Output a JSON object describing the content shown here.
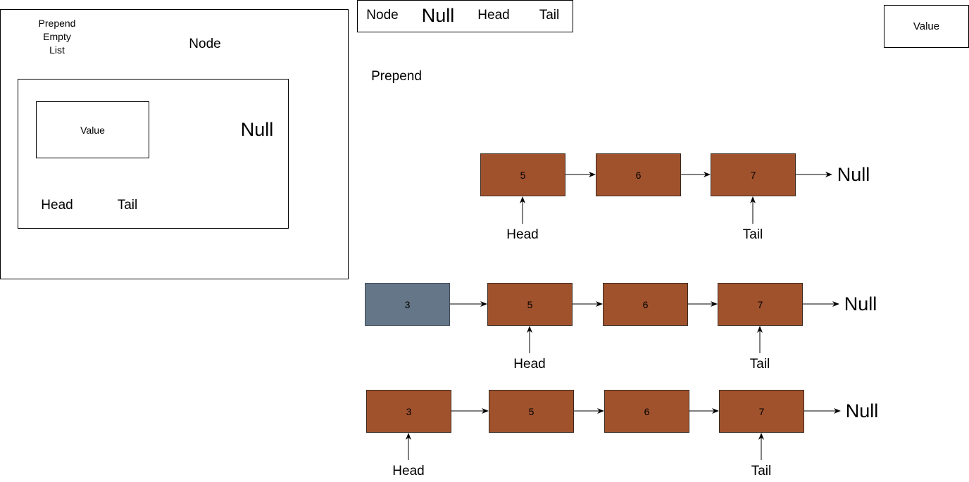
{
  "colors": {
    "node_fill": "#A0522D",
    "new_node_fill": "#647687",
    "stroke": "#000000"
  },
  "empty_list_panel": {
    "title": "Prepend\nEmpty\nList",
    "node_label": "Node",
    "value_label": "Value",
    "null_label": "Null",
    "head_label": "Head",
    "tail_label": "Tail"
  },
  "legend": {
    "node": "Node",
    "null": "Null",
    "head": "Head",
    "tail": "Tail"
  },
  "value_sample": "Value",
  "prepend_title": "Prepend",
  "rows": [
    {
      "nodes": [
        "5",
        "6",
        "7"
      ],
      "null_label": "Null",
      "head_label": "Head",
      "tail_label": "Tail"
    },
    {
      "nodes": [
        "3",
        "5",
        "6",
        "7"
      ],
      "null_label": "Null",
      "head_label": "Head",
      "tail_label": "Tail"
    },
    {
      "nodes": [
        "3",
        "5",
        "6",
        "7"
      ],
      "null_label": "Null",
      "head_label": "Head",
      "tail_label": "Tail"
    }
  ]
}
